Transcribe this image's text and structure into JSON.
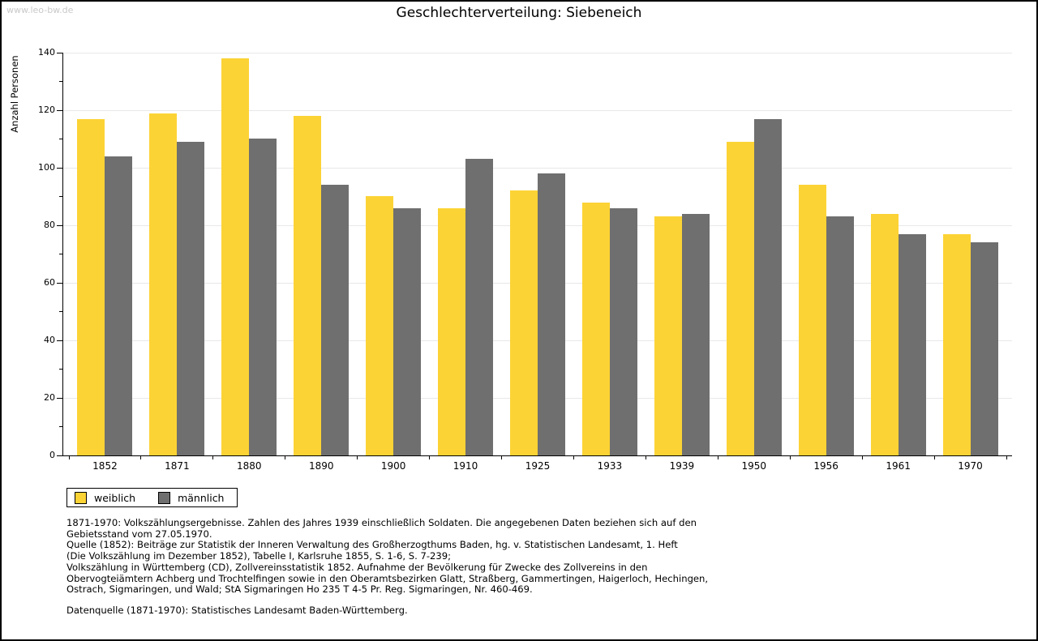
{
  "watermark": "www.leo-bw.de",
  "title": "Geschlechterverteilung: Siebeneich",
  "chart_data": {
    "type": "bar",
    "title": "Geschlechterverteilung: Siebeneich",
    "xlabel": "",
    "ylabel": "Anzahl Personen",
    "ylim": [
      0,
      140
    ],
    "ytick_step": 20,
    "ytick_minor_step": 10,
    "grid": true,
    "legend_position": "bottom-left",
    "categories": [
      "1852",
      "1871",
      "1880",
      "1890",
      "1900",
      "1910",
      "1925",
      "1933",
      "1939",
      "1950",
      "1956",
      "1961",
      "1970"
    ],
    "series": [
      {
        "name": "weiblich",
        "color": "#fcd335",
        "values": [
          117,
          119,
          138,
          118,
          90,
          86,
          92,
          88,
          83,
          109,
          94,
          84,
          77
        ]
      },
      {
        "name": "männlich",
        "color": "#6f6f6f",
        "values": [
          104,
          109,
          110,
          94,
          86,
          103,
          98,
          86,
          84,
          117,
          83,
          77,
          74
        ]
      }
    ]
  },
  "footnotes": [
    "1871-1970: Volkszählungsergebnisse. Zahlen des Jahres 1939 einschließlich Soldaten. Die angegebenen Daten beziehen sich auf den",
    "Gebietsstand vom 27.05.1970.",
    "Quelle (1852): Beiträge zur Statistik der Inneren Verwaltung des Großherzogthums Baden, hg. v. Statistischen Landesamt, 1. Heft",
    "(Die Volkszählung im Dezember 1852), Tabelle I, Karlsruhe 1855, S. 1-6, S. 7-239;",
    "Volkszählung in Württemberg (CD), Zollvereinsstatistik 1852. Aufnahme der Bevölkerung für Zwecke des Zollvereins in den",
    "Obervogteiämtern Achberg und Trochtelfingen sowie in den Oberamtsbezirken Glatt, Straßberg, Gammertingen, Haigerloch, Hechingen,",
    "Ostrach, Sigmaringen, und Wald; StA Sigmaringen Ho 235 T 4-5 Pr. Reg. Sigmaringen, Nr. 460-469."
  ],
  "datasource": "Datenquelle (1871-1970): Statistisches Landesamt Baden-Württemberg."
}
